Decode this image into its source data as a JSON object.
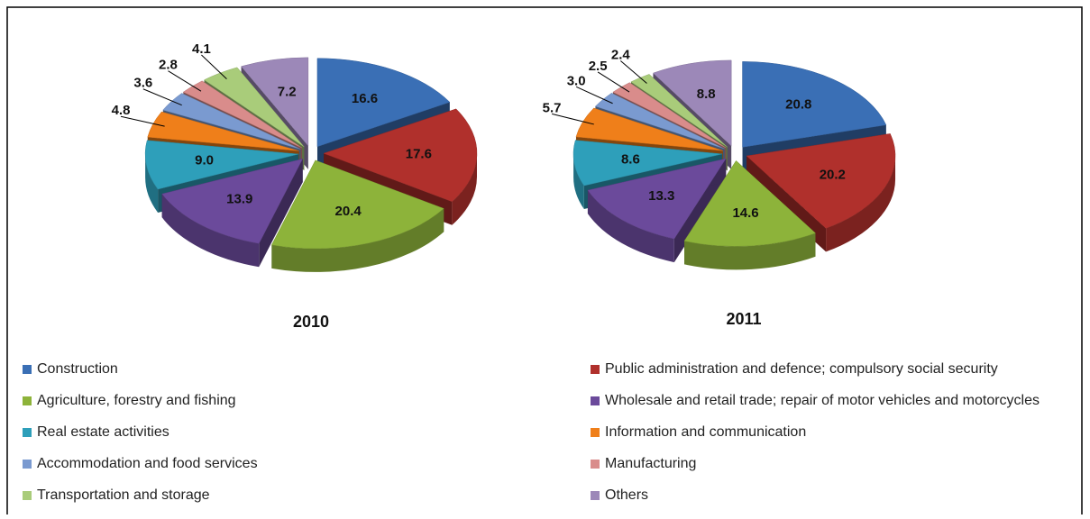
{
  "chart_data": {
    "type": "pie",
    "categories": [
      "Construction",
      "Public administration and defence; compulsory social security",
      "Agriculture, forestry and fishing",
      "Wholesale and retail trade; repair of motor vehicles and motorcycles",
      "Real estate activities",
      "Information and communication",
      "Accommodation and food services",
      "Manufacturing",
      "Transportation and storage",
      "Others"
    ],
    "colors": [
      "#3a6fb5",
      "#b0302c",
      "#8db33a",
      "#6b4a9b",
      "#2e9fba",
      "#ef7f1a",
      "#7a9ad0",
      "#d98c8b",
      "#a9cc7a",
      "#9c88b8"
    ],
    "series": [
      {
        "name": "2010",
        "values": [
          16.6,
          17.6,
          20.4,
          13.9,
          9.0,
          4.8,
          3.6,
          2.8,
          4.1,
          7.2
        ],
        "value_labels": [
          "16.6",
          "17.6",
          "20.4",
          "13.9",
          "9.0",
          "4.8",
          "3.6",
          "2.8",
          "4.1",
          "7.2"
        ]
      },
      {
        "name": "2011",
        "values": [
          20.8,
          20.2,
          14.6,
          13.3,
          8.6,
          5.7,
          3.0,
          2.5,
          2.4,
          8.8
        ],
        "value_labels": [
          "20.8",
          "20.2",
          "14.6",
          "13.3",
          "8.6",
          "5.7",
          "3.0",
          "2.5",
          "2.4",
          "8.8"
        ]
      }
    ]
  }
}
